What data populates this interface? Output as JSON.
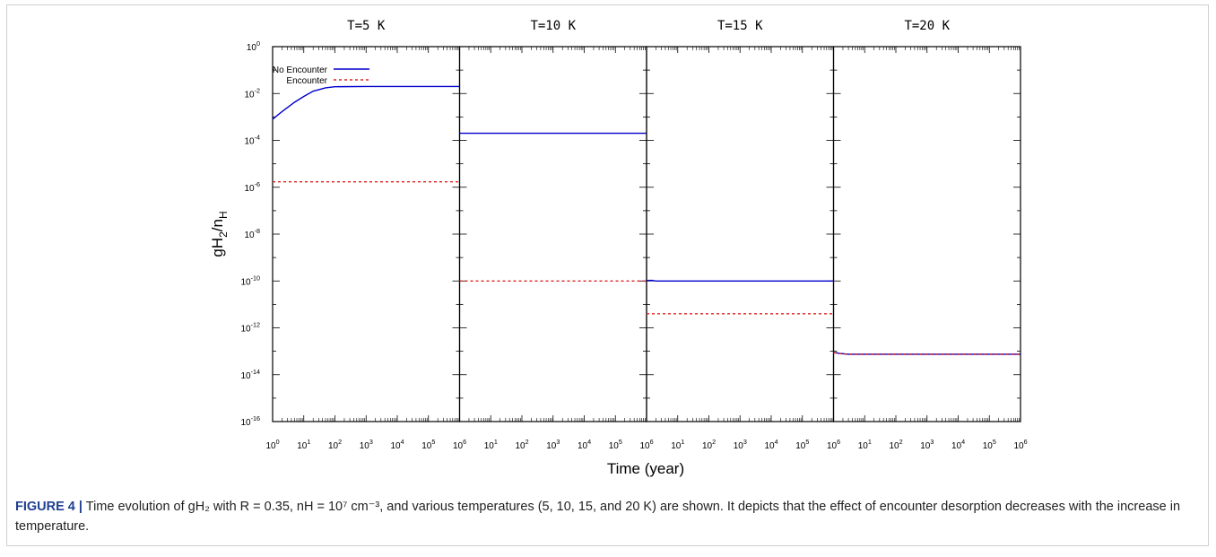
{
  "chart_data": {
    "type": "line",
    "panels": [
      {
        "title": "T=5 K",
        "series": [
          {
            "name": "No Encounter",
            "x": [
              1,
              2,
              5,
              10,
              20,
              50,
              100,
              1000,
              10000,
              100000,
              1000000
            ],
            "y": [
              0.0008,
              0.0017,
              0.0042,
              0.0075,
              0.0125,
              0.0175,
              0.0195,
              0.02,
              0.02,
              0.02,
              0.02
            ]
          },
          {
            "name": "Encounter",
            "x": [
              1,
              1000000
            ],
            "y": [
              1.7e-06,
              1.7e-06
            ]
          }
        ]
      },
      {
        "title": "T=10 K",
        "series": [
          {
            "name": "No Encounter",
            "x": [
              1,
              1000000
            ],
            "y": [
              0.0002,
              0.0002
            ]
          },
          {
            "name": "Encounter",
            "x": [
              1,
              1000000
            ],
            "y": [
              1e-10,
              1e-10
            ]
          }
        ]
      },
      {
        "title": "T=15 K",
        "series": [
          {
            "name": "No Encounter",
            "x": [
              1,
              1.5,
              2,
              1000000
            ],
            "y": [
              1.05e-10,
              1.06e-10,
              1e-10,
              1e-10
            ]
          },
          {
            "name": "Encounter",
            "x": [
              1,
              1000000
            ],
            "y": [
              4e-12,
              4e-12
            ]
          }
        ]
      },
      {
        "title": "T=20 K",
        "series": [
          {
            "name": "No Encounter",
            "x": [
              1,
              1.5,
              3,
              1000000
            ],
            "y": [
              9e-14,
              8.2e-14,
              7.5e-14,
              7.5e-14
            ]
          },
          {
            "name": "Encounter",
            "x": [
              1,
              1.5,
              3,
              1000000
            ],
            "y": [
              8.8e-14,
              8e-14,
              7.4e-14,
              7.4e-14
            ]
          }
        ]
      }
    ],
    "legend": {
      "position": "top-left",
      "entries": [
        {
          "name": "No Encounter",
          "color": "#0000cc",
          "style": "solid"
        },
        {
          "name": "Encounter",
          "color": "#e02020",
          "style": "dashed"
        }
      ]
    },
    "xlabel": "Time (year)",
    "ylabel": "gH2/nH",
    "xscale": "log",
    "yscale": "log",
    "xlim": [
      1,
      1000000
    ],
    "ylim": [
      1e-16,
      1
    ],
    "x_ticks": [
      {
        "base": "10",
        "exp": "0"
      },
      {
        "base": "10",
        "exp": "1"
      },
      {
        "base": "10",
        "exp": "2"
      },
      {
        "base": "10",
        "exp": "3"
      },
      {
        "base": "10",
        "exp": "4"
      },
      {
        "base": "10",
        "exp": "5"
      },
      {
        "base": "10",
        "exp": "6"
      }
    ],
    "y_ticks": [
      {
        "base": "10",
        "exp": "0"
      },
      {
        "base": "10",
        "exp": "-2"
      },
      {
        "base": "10",
        "exp": "-4"
      },
      {
        "base": "10",
        "exp": "-6"
      },
      {
        "base": "10",
        "exp": "-8"
      },
      {
        "base": "10",
        "exp": "-10"
      },
      {
        "base": "10",
        "exp": "-12"
      },
      {
        "base": "10",
        "exp": "-14"
      },
      {
        "base": "10",
        "exp": "-16"
      }
    ],
    "grid": false
  },
  "caption": {
    "label": "FIGURE 4 |",
    "text": "Time evolution of gH₂ with R = 0.35, nH = 10⁷  cm⁻³, and various temperatures (5, 10, 15, and 20 K) are shown. It depicts that the effect of encounter desorption decreases with the increase in temperature."
  }
}
